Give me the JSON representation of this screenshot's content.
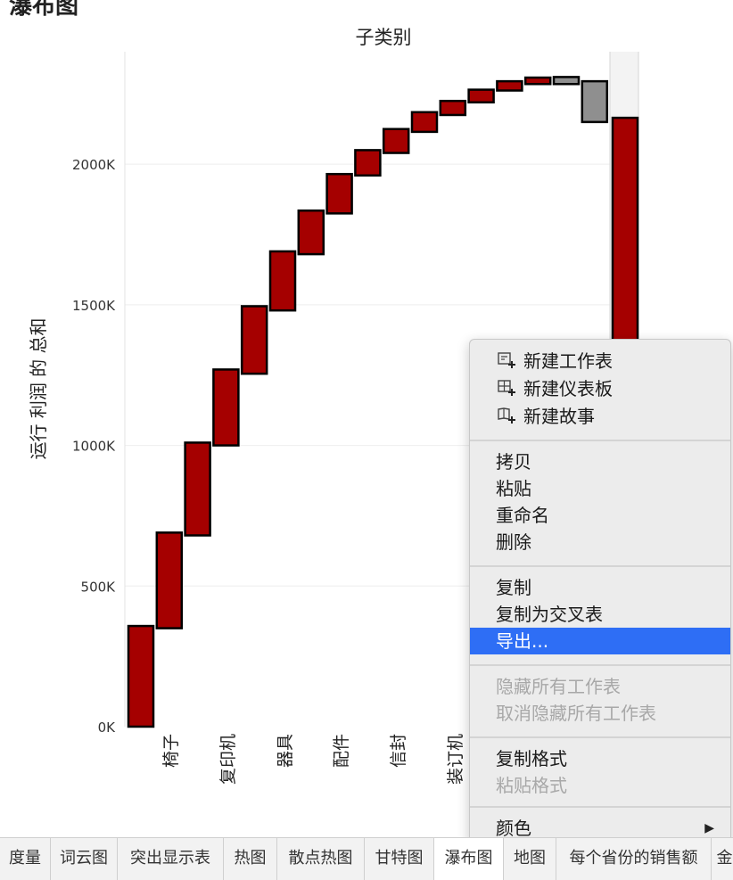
{
  "sheet_title_fragment": "瀑布图",
  "chart_data": {
    "type": "waterfall",
    "title": "子类别",
    "ylabel": "运行 利润 的 总和",
    "ylim": [
      0,
      2400000
    ],
    "yticks": [
      {
        "value": 0,
        "label": "0K"
      },
      {
        "value": 500000,
        "label": "500K"
      },
      {
        "value": 1000000,
        "label": "1000K"
      },
      {
        "value": 1500000,
        "label": "1500K"
      },
      {
        "value": 2000000,
        "label": "2000K"
      }
    ],
    "x_labels_visible": [
      "椅子",
      "复印机",
      "器具",
      "配件",
      "信封",
      "装订机"
    ],
    "bars": [
      {
        "start": 0,
        "end": 358000,
        "color": "#a50000"
      },
      {
        "start": 350000,
        "end": 690000,
        "color": "#a50000"
      },
      {
        "start": 680000,
        "end": 1010000,
        "color": "#a50000"
      },
      {
        "start": 1000000,
        "end": 1270000,
        "color": "#a50000"
      },
      {
        "start": 1255000,
        "end": 1495000,
        "color": "#a50000"
      },
      {
        "start": 1480000,
        "end": 1690000,
        "color": "#a50000"
      },
      {
        "start": 1680000,
        "end": 1835000,
        "color": "#a50000"
      },
      {
        "start": 1825000,
        "end": 1965000,
        "color": "#a50000"
      },
      {
        "start": 1960000,
        "end": 2050000,
        "color": "#a50000"
      },
      {
        "start": 2040000,
        "end": 2125000,
        "color": "#a50000"
      },
      {
        "start": 2115000,
        "end": 2185000,
        "color": "#a50000"
      },
      {
        "start": 2175000,
        "end": 2225000,
        "color": "#a50000"
      },
      {
        "start": 2220000,
        "end": 2265000,
        "color": "#a50000"
      },
      {
        "start": 2262000,
        "end": 2295000,
        "color": "#a50000"
      },
      {
        "start": 2285000,
        "end": 2308000,
        "color": "#a50000"
      },
      {
        "start": 2285000,
        "end": 2310000,
        "color": "#8f8f8f"
      },
      {
        "start": 2150000,
        "end": 2295000,
        "color": "#8f8f8f"
      },
      {
        "start": 1350000,
        "end": 2165000,
        "color": "#a50000"
      }
    ]
  },
  "context_menu": {
    "items": [
      {
        "label": "新建工作表",
        "icon": "new-worksheet-icon",
        "disabled": false
      },
      {
        "label": "新建仪表板",
        "icon": "new-dashboard-icon",
        "disabled": false
      },
      {
        "label": "新建故事",
        "icon": "new-story-icon",
        "disabled": false
      },
      {
        "label": "拷贝",
        "disabled": false
      },
      {
        "label": "粘贴",
        "disabled": false
      },
      {
        "label": "重命名",
        "disabled": false
      },
      {
        "label": "删除",
        "disabled": false
      },
      {
        "label": "复制",
        "disabled": false
      },
      {
        "label": "复制为交叉表",
        "disabled": false
      },
      {
        "label": "导出...",
        "disabled": false,
        "highlighted": true
      },
      {
        "label": "隐藏所有工作表",
        "disabled": true
      },
      {
        "label": "取消隐藏所有工作表",
        "disabled": true
      },
      {
        "label": "复制格式",
        "disabled": false
      },
      {
        "label": "粘贴格式",
        "disabled": true
      },
      {
        "label": "颜色",
        "disabled": false,
        "submenu": true
      }
    ],
    "accent_color": "#2e6ef5"
  },
  "tabs": [
    {
      "label": "度量",
      "active": false
    },
    {
      "label": "词云图",
      "active": false
    },
    {
      "label": "突出显示表",
      "active": false
    },
    {
      "label": "热图",
      "active": false
    },
    {
      "label": "散点热图",
      "active": false
    },
    {
      "label": "甘特图",
      "active": false
    },
    {
      "label": "瀑布图",
      "active": true
    },
    {
      "label": "地图",
      "active": false
    },
    {
      "label": "每个省份的销售额",
      "active": false
    },
    {
      "label": "金",
      "active": false
    }
  ]
}
